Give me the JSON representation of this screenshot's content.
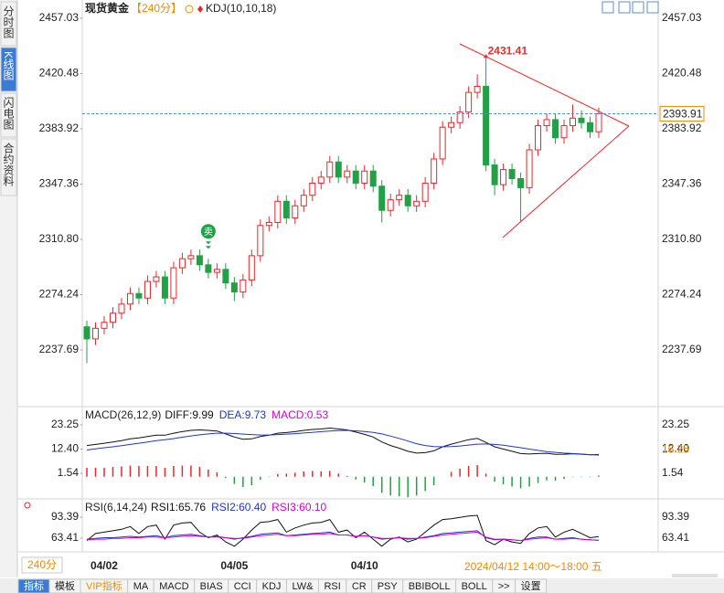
{
  "sidebar_tabs": [
    "分时图",
    "K线图",
    "闪电图",
    "合约资料"
  ],
  "period_button": "240分",
  "cursor_time": "2024/04/12 14:00～18:00 五",
  "toolbar_tabs": [
    "指标",
    "模板",
    "VIP指标",
    "MA",
    "MACD",
    "BIAS",
    "CCI",
    "KDJ",
    "LW&",
    "RSI",
    "CR",
    "PSY",
    "BBIBOLL",
    "BOLL",
    ">>",
    "设置"
  ],
  "chart_data": [
    {
      "type": "candlestick",
      "title": "现货黄金",
      "period": "【240分】",
      "indicator": "KDJ(10,10,18)",
      "categories": [
        null,
        null,
        "04/02",
        null,
        null,
        null,
        null,
        null,
        null,
        null,
        null,
        null,
        null,
        null,
        null,
        null,
        null,
        "04/05",
        null,
        null,
        null,
        null,
        null,
        null,
        null,
        null,
        null,
        null,
        null,
        null,
        null,
        null,
        "04/10",
        null,
        null,
        null,
        null,
        null,
        null,
        null,
        null,
        null,
        null,
        null,
        null,
        null,
        null,
        null,
        null,
        null,
        null,
        null,
        null,
        null,
        null,
        null,
        null,
        null,
        null,
        null
      ],
      "signals": [
        null,
        null,
        null,
        null,
        null,
        null,
        null,
        null,
        null,
        null,
        null,
        null,
        null,
        null,
        "卖",
        null,
        null,
        null,
        null,
        null,
        null,
        null,
        null,
        null,
        null,
        null,
        null,
        null,
        null,
        null,
        null,
        null,
        null,
        null,
        null,
        null,
        null,
        null,
        null,
        null,
        null,
        null,
        null,
        null,
        null,
        null,
        null,
        null,
        null,
        null,
        null,
        null,
        null,
        null,
        null,
        null,
        null,
        null,
        null,
        null
      ],
      "open": [
        2253,
        2245,
        2252,
        2256,
        2262,
        2268,
        2275,
        2272,
        2283,
        2286,
        2272,
        2292,
        2298,
        2300,
        2294,
        2289,
        2291,
        2282,
        2276,
        2284,
        2300,
        2320,
        2322,
        2336,
        2325,
        2333,
        2340,
        2348,
        2352,
        2362,
        2352,
        2356,
        2348,
        2356,
        2346,
        2330,
        2337,
        2340,
        2333,
        2336,
        2348,
        2364,
        2385,
        2388,
        2395,
        2408,
        2412,
        2360,
        2347,
        2357,
        2351,
        2345,
        2370,
        2386,
        2390,
        2378,
        2386,
        2391,
        2388,
        2382
      ],
      "high": [
        2257,
        2256,
        2260,
        2266,
        2272,
        2279,
        2279,
        2287,
        2290,
        2290,
        2296,
        2302,
        2304,
        2304,
        2298,
        2295,
        2295,
        2286,
        2288,
        2304,
        2324,
        2326,
        2340,
        2340,
        2337,
        2344,
        2352,
        2356,
        2366,
        2366,
        2360,
        2360,
        2360,
        2360,
        2350,
        2341,
        2344,
        2344,
        2340,
        2352,
        2368,
        2389,
        2392,
        2399,
        2412,
        2420,
        2431.41,
        2364,
        2361,
        2361,
        2355,
        2374,
        2390,
        2394,
        2394,
        2390,
        2400,
        2396,
        2392,
        2398
      ],
      "low": [
        2229,
        2241,
        2248,
        2252,
        2258,
        2264,
        2268,
        2268,
        2279,
        2268,
        2268,
        2288,
        2294,
        2290,
        2285,
        2285,
        2278,
        2270,
        2272,
        2280,
        2296,
        2316,
        2318,
        2321,
        2321,
        2329,
        2336,
        2344,
        2348,
        2348,
        2348,
        2344,
        2344,
        2342,
        2322,
        2326,
        2333,
        2329,
        2329,
        2332,
        2344,
        2360,
        2381,
        2384,
        2391,
        2404,
        2356,
        2340,
        2343,
        2347,
        2322,
        2341,
        2366,
        2382,
        2374,
        2374,
        2382,
        2384,
        2378,
        2378
      ],
      "close": [
        2245,
        2252,
        2256,
        2262,
        2268,
        2275,
        2272,
        2283,
        2286,
        2272,
        2292,
        2298,
        2300,
        2294,
        2289,
        2291,
        2282,
        2276,
        2284,
        2300,
        2320,
        2322,
        2336,
        2325,
        2333,
        2340,
        2348,
        2352,
        2362,
        2352,
        2356,
        2348,
        2356,
        2346,
        2330,
        2337,
        2340,
        2333,
        2336,
        2348,
        2364,
        2385,
        2388,
        2395,
        2408,
        2412,
        2360,
        2347,
        2357,
        2351,
        2345,
        2370,
        2386,
        2390,
        2378,
        2386,
        2391,
        2388,
        2382,
        2393.91
      ],
      "up_color": "#e8282b",
      "down_color": "#22a046",
      "last_price": 2393.91,
      "ylim": [
        2201.44,
        2463.07
      ],
      "yticks": [
        2457.03,
        2420.48,
        2383.92,
        2347.36,
        {
          "value": 2310.8,
          "label": "2310.80"
        },
        2274.24,
        2237.69
      ],
      "grid": false
    },
    {
      "type": "line",
      "title": "MACD(26,12,9)",
      "series": [
        {
          "name": "DIFF:9.99",
          "color": "#111111",
          "values": [
            14,
            14.5,
            15,
            15.6,
            16.2,
            17,
            17.4,
            18,
            18.6,
            18.6,
            19.5,
            20.2,
            20.8,
            21,
            20.8,
            20.5,
            19.2,
            17.8,
            16.8,
            17,
            18,
            18.6,
            19.5,
            19.8,
            20.2,
            20.8,
            21.2,
            21.4,
            21.8,
            21.4,
            21,
            20,
            19,
            17.8,
            15.6,
            14,
            12.8,
            11.4,
            10.6,
            10.8,
            11.6,
            13.4,
            14.6,
            15.6,
            16.6,
            17.2,
            15.4,
            13.4,
            12.4,
            11.4,
            10.4,
            10.2,
            10.4,
            10.5,
            10,
            10.1,
            10.3,
            10.1,
            9.8,
            9.99
          ]
        },
        {
          "name": "DEA:9.73",
          "color": "#1f35c9",
          "values": [
            12,
            12.5,
            13,
            13.4,
            13.9,
            14.5,
            15,
            15.6,
            16.2,
            16.6,
            17.1,
            17.7,
            18.3,
            18.8,
            19.2,
            19.5,
            19.5,
            19.4,
            19.1,
            18.9,
            18.7,
            18.7,
            18.9,
            19.1,
            19.3,
            19.6,
            19.9,
            20.2,
            20.5,
            20.7,
            20.8,
            20.6,
            20.3,
            19.9,
            19.2,
            18.2,
            17.2,
            16,
            14.8,
            14,
            13.5,
            13.4,
            13.5,
            13.8,
            14.2,
            14.6,
            14.7,
            14.5,
            14.1,
            13.6,
            13,
            12.4,
            11.8,
            11.3,
            10.9,
            10.6,
            10.4,
            10.2,
            9.9,
            9.73
          ]
        },
        {
          "name": "MACD:0.53",
          "color": "#d400d4",
          "type": "bar",
          "up_color": "#e8282b",
          "down_color": "#22a046",
          "values": [
            4,
            4,
            4,
            4.4,
            4.6,
            5,
            4.8,
            4.8,
            4.8,
            4,
            4.8,
            5,
            5,
            4.4,
            3.2,
            2,
            -0.6,
            -3.2,
            -4.6,
            -3.8,
            -1.4,
            -0.2,
            1.2,
            1.4,
            1.8,
            2.4,
            2.6,
            2.4,
            2.6,
            1.4,
            0.4,
            -1.2,
            -2.6,
            -4.2,
            -7.2,
            -8.4,
            -8.8,
            -9.2,
            -8.4,
            -6.4,
            -3.8,
            0,
            2.2,
            3.6,
            4.8,
            5.2,
            1.4,
            -2.2,
            -3.4,
            -4.4,
            -5.2,
            -4.4,
            -2.8,
            -1.6,
            -1.8,
            -1,
            -0.2,
            -0.2,
            -0.2,
            0.53
          ]
        }
      ],
      "cursor_value": 16.25,
      "ylim": [
        -9.52,
        29.8
      ],
      "yticks": [
        23.25,
        {
          "value": 12.4,
          "label": "12.40"
        },
        1.54
      ],
      "grid": false
    },
    {
      "type": "line",
      "title": "RSI(6,14,24)",
      "series": [
        {
          "name": "RSI1:65.76",
          "color": "#111111",
          "values": [
            60,
            70,
            72,
            74,
            76,
            80,
            70,
            80,
            82,
            62,
            82,
            85,
            86,
            72,
            64,
            68,
            58,
            52,
            62,
            75,
            86,
            87,
            90,
            72,
            78,
            82,
            85,
            86,
            90,
            72,
            75,
            64,
            72,
            62,
            52,
            62,
            65,
            58,
            62,
            72,
            82,
            90,
            91,
            93,
            95,
            96,
            60,
            54,
            62,
            58,
            56,
            70,
            78,
            80,
            65,
            72,
            76,
            70,
            64,
            65.76
          ]
        },
        {
          "name": "RSI2:60.40",
          "color": "#1f35c9",
          "values": [
            62,
            63,
            64,
            64,
            65,
            66,
            65,
            66,
            67,
            64,
            67,
            68,
            69,
            67,
            65,
            66,
            64,
            62,
            64,
            66,
            69,
            70,
            71,
            67,
            68,
            69,
            70,
            71,
            72,
            68,
            68,
            66,
            67,
            65,
            62,
            63,
            64,
            62,
            63,
            65,
            67,
            70,
            71,
            72,
            73,
            74,
            64,
            61,
            62,
            61,
            60,
            63,
            65,
            65,
            62,
            63,
            64,
            62,
            61,
            60.4
          ]
        },
        {
          "name": "RSI3:60.10",
          "color": "#d400d4",
          "values": [
            61,
            62,
            62,
            63,
            63,
            64,
            64,
            65,
            65,
            64,
            65,
            66,
            67,
            66,
            65,
            65,
            64,
            63,
            63,
            65,
            67,
            68,
            69,
            67,
            67,
            68,
            69,
            69,
            70,
            68,
            68,
            66,
            67,
            65,
            63,
            63,
            64,
            63,
            63,
            64,
            66,
            68,
            69,
            70,
            71,
            72,
            65,
            62,
            62,
            61,
            60,
            62,
            63,
            64,
            62,
            62,
            63,
            62,
            61,
            60.1
          ]
        }
      ],
      "ylim": [
        49.07,
        114.25
      ],
      "yticks": [
        93.39,
        63.41
      ],
      "grid": false
    }
  ]
}
